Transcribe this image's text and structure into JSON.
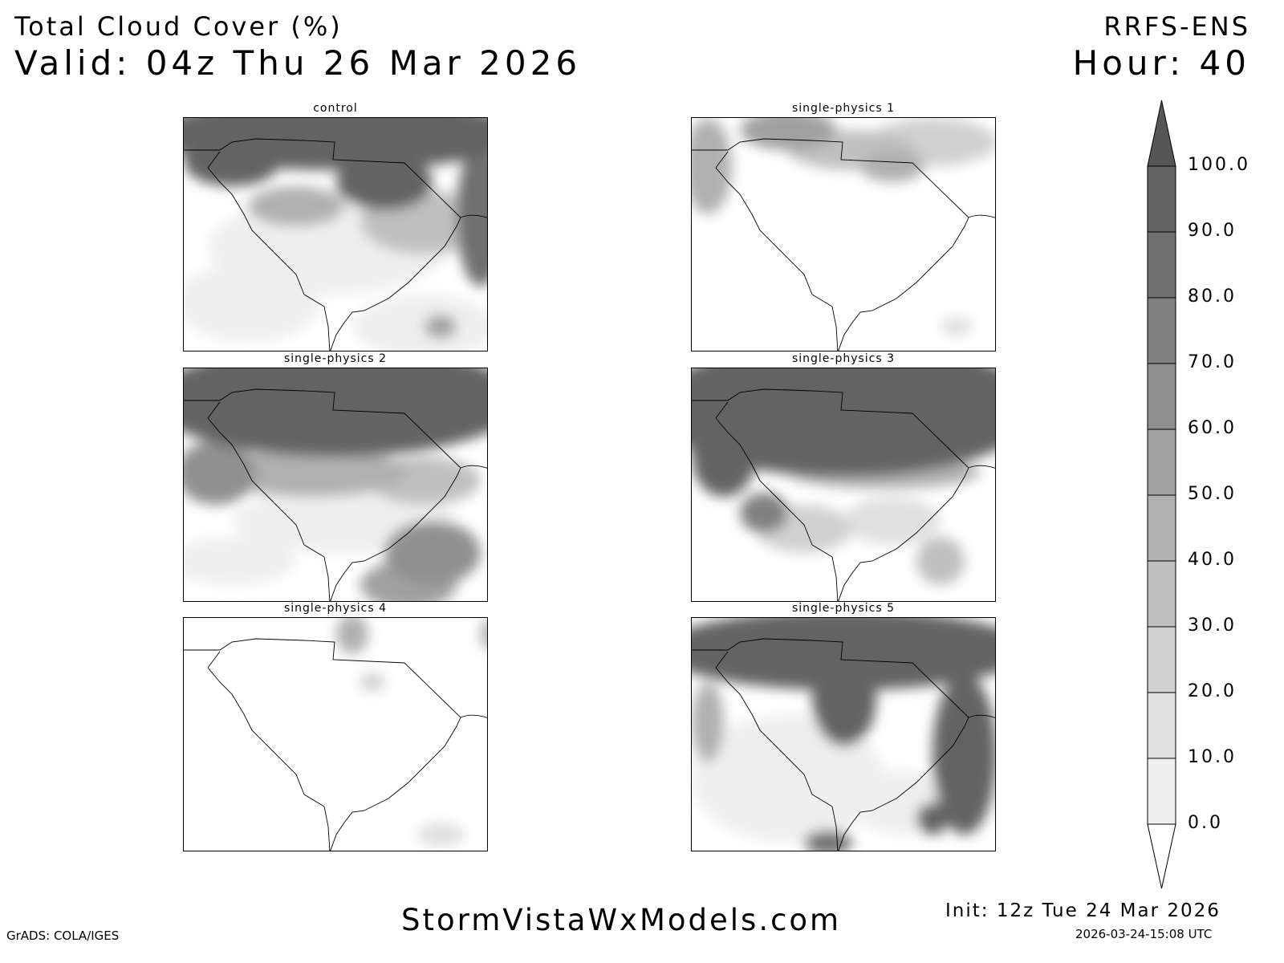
{
  "header": {
    "title": "Total Cloud Cover (%)",
    "valid": "Valid: 04z Thu 26 Mar 2026",
    "model": "RRFS-ENS",
    "hour": "Hour: 40"
  },
  "panels": [
    {
      "title": "control"
    },
    {
      "title": "single-physics 1"
    },
    {
      "title": "single-physics 2"
    },
    {
      "title": "single-physics 3"
    },
    {
      "title": "single-physics 4"
    },
    {
      "title": "single-physics 5"
    }
  ],
  "colorbar": {
    "labels": [
      "0.0",
      "10.0",
      "20.0",
      "30.0",
      "40.0",
      "50.0",
      "60.0",
      "70.0",
      "80.0",
      "90.0",
      "100.0"
    ],
    "colors": [
      "#efefef",
      "#e0e0e0",
      "#d0d0d0",
      "#c0c0c0",
      "#b0b0b0",
      "#a0a0a0",
      "#909090",
      "#808080",
      "#707070",
      "#636363"
    ],
    "over_color": "#565656",
    "under_color": "#ffffff"
  },
  "footer": {
    "site": "StormVistaWxModels.com",
    "init": "Init: 12z Tue 24 Mar 2026",
    "timestamp": "2026-03-24-15:08 UTC",
    "credit": "GrADS: COLA/IGES"
  }
}
